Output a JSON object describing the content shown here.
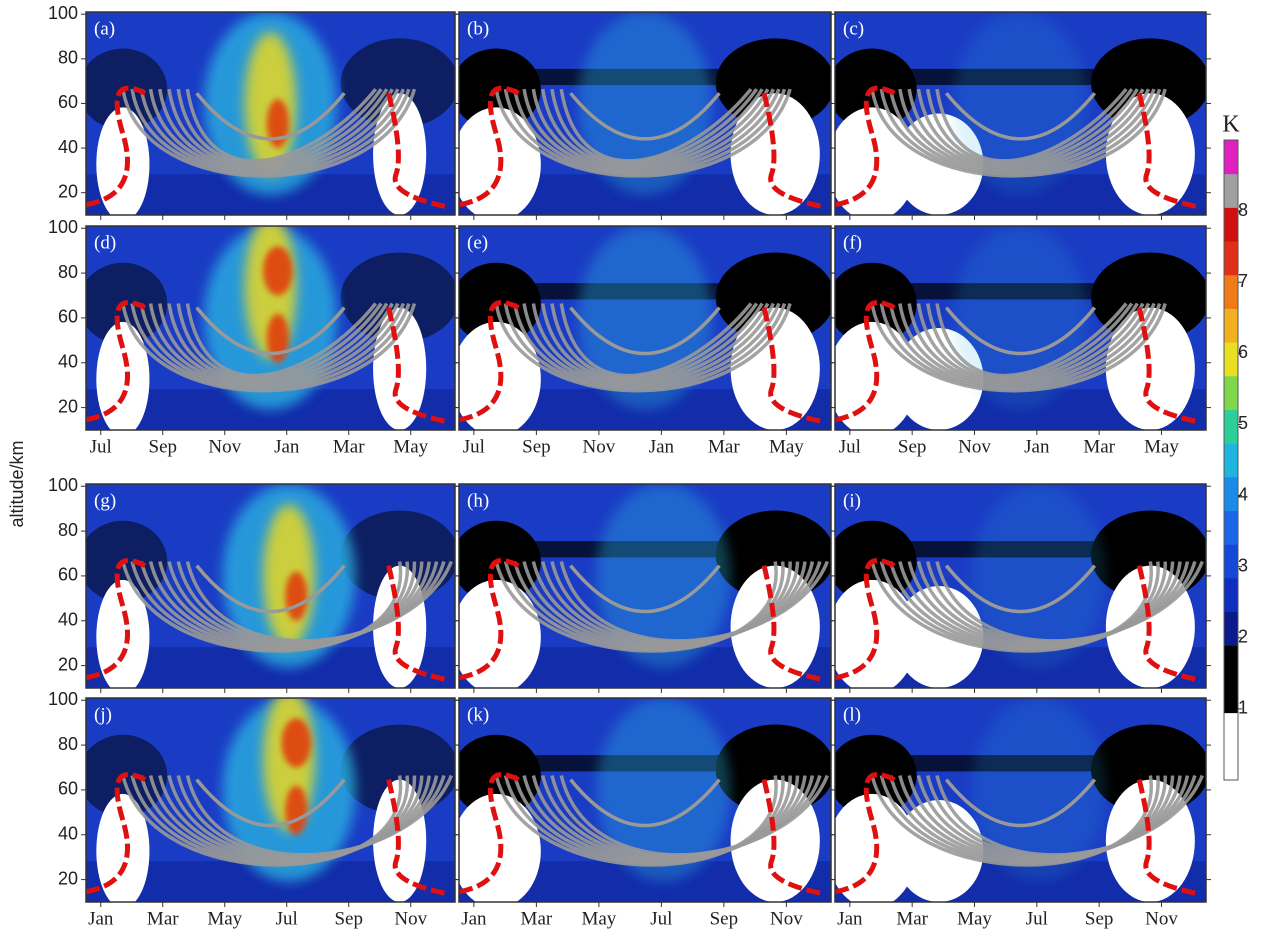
{
  "figure": {
    "y_label": "altitude/km",
    "ylim": [
      10,
      101
    ],
    "yticks": [
      20,
      40,
      60,
      80,
      100
    ],
    "panel_groups": [
      {
        "xticks": [
          "Jul",
          "Sep",
          "Nov",
          "Jan",
          "Mar",
          "May"
        ],
        "panels": [
          [
            "(a)",
            "(b)",
            "(c)"
          ],
          [
            "(d)",
            "(e)",
            "(f)"
          ]
        ]
      },
      {
        "xticks": [
          "Jan",
          "Mar",
          "May",
          "Jul",
          "Sep",
          "Nov"
        ],
        "panels": [
          [
            "(g)",
            "(h)",
            "(i)"
          ],
          [
            "(j)",
            "(k)",
            "(l)"
          ]
        ]
      }
    ],
    "colorbar": {
      "label": "K",
      "lim": [
        0,
        9
      ],
      "ticks": [
        1,
        2,
        3,
        4,
        5,
        6,
        7,
        8
      ],
      "colors": [
        "#ffffff",
        "#ffffff",
        "#000000",
        "#000000",
        "#0a1a8a",
        "#0f2fc0",
        "#1448d8",
        "#1a66e8",
        "#1a8be8",
        "#20b4e0",
        "#2ccf9a",
        "#7ed84a",
        "#e8e020",
        "#f0b020",
        "#f07a18",
        "#e03018",
        "#d01010",
        "#a0a0a0",
        "#e020c0"
      ]
    }
  }
}
